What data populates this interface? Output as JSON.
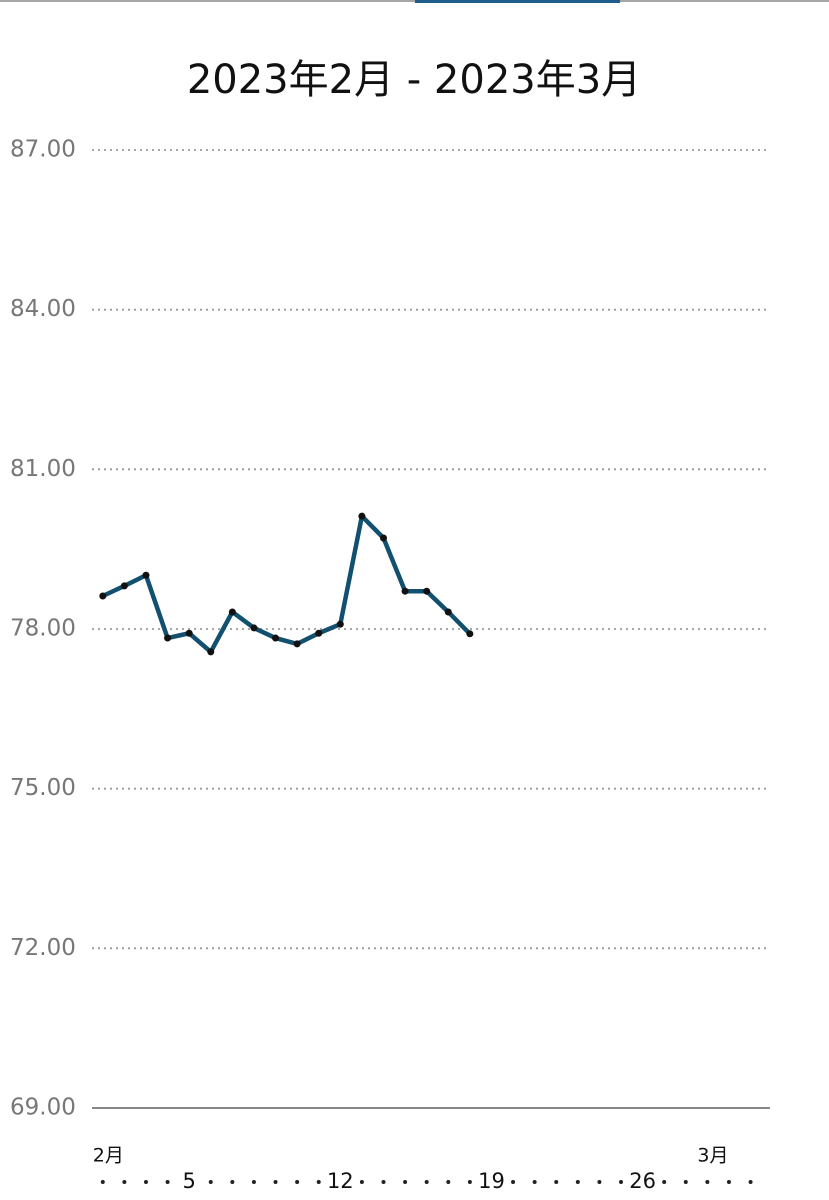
{
  "chart_data": {
    "type": "line",
    "title": "2023年2月 - 2023年3月",
    "x": [
      1,
      2,
      3,
      4,
      5,
      6,
      7,
      8,
      9,
      10,
      11,
      12,
      13,
      14,
      15,
      16,
      17,
      18
    ],
    "series": [
      {
        "color": "#12506f",
        "values": [
          78.62,
          78.81,
          79.01,
          77.83,
          77.92,
          77.57,
          78.32,
          78.02,
          77.83,
          77.72,
          77.92,
          78.09,
          80.12,
          79.71,
          78.71,
          78.71,
          78.32,
          77.91
        ]
      }
    ],
    "xlim": [
      0.5,
      31.9
    ],
    "xticks": [
      {
        "value": 1,
        "label": "2月"
      },
      5,
      12,
      19,
      26,
      {
        "value": 29,
        "label": "3月"
      }
    ],
    "ylim": [
      69,
      87
    ],
    "yticks": [
      {
        "value": 69,
        "label": "69.00"
      },
      {
        "value": 72,
        "label": "72.00"
      },
      {
        "value": 75,
        "label": "75.00"
      },
      {
        "value": 78,
        "label": "78.00"
      },
      {
        "value": 81,
        "label": "81.00"
      },
      {
        "value": 84,
        "label": "84.00"
      },
      {
        "value": 87,
        "label": "87.00"
      }
    ],
    "grid": true
  }
}
